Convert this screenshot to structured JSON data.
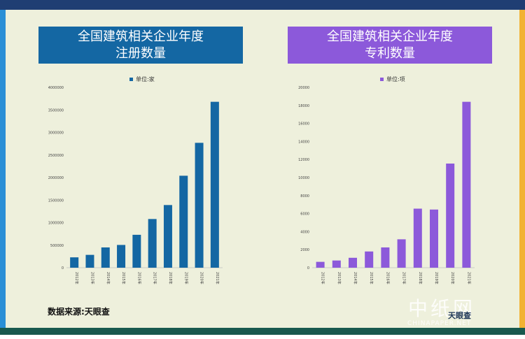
{
  "left_title_line1": "全国建筑相关企业年度",
  "left_title_line2": "注册数量",
  "right_title_line1": "全国建筑相关企业年度",
  "right_title_line2": "专利数量",
  "source": "数据来源:天眼查",
  "watermark": {
    "main": "中纸网",
    "sub": "CHINAPAPER.NET",
    "brand": "天眼查"
  },
  "colors": {
    "left_series": "#1467a3",
    "right_series": "#8c59da",
    "background": "#eef0dc"
  },
  "chart_data": [
    {
      "type": "bar",
      "title": "全国建筑相关企业年度注册数量",
      "categories": [
        "2012年",
        "2013年",
        "2014年",
        "2015年",
        "2016年",
        "2017年",
        "2018年",
        "2019年",
        "2020年",
        "2021年"
      ],
      "series": [
        {
          "name": "单位:家",
          "values": [
            230000,
            285000,
            450000,
            505000,
            730000,
            1080000,
            1390000,
            2040000,
            2770000,
            3680000
          ]
        }
      ],
      "ylim": [
        0,
        4000000
      ],
      "yticks": [
        0,
        500000,
        1000000,
        1500000,
        2000000,
        2500000,
        3000000,
        3500000,
        4000000
      ],
      "legend": "top-center",
      "grid": false
    },
    {
      "type": "bar",
      "title": "全国建筑相关企业年度专利数量",
      "categories": [
        "2012年",
        "2013年",
        "2014年",
        "2015年",
        "2016年",
        "2017年",
        "2018年",
        "2019年",
        "2020年",
        "2021年"
      ],
      "series": [
        {
          "name": "单位:项",
          "values": [
            650,
            800,
            1100,
            1800,
            2250,
            3150,
            6550,
            6450,
            11550,
            18400
          ]
        }
      ],
      "ylim": [
        0,
        20000
      ],
      "yticks": [
        0,
        2000,
        4000,
        6000,
        8000,
        10000,
        12000,
        14000,
        16000,
        18000,
        20000
      ],
      "legend": "top-center",
      "grid": false
    }
  ]
}
